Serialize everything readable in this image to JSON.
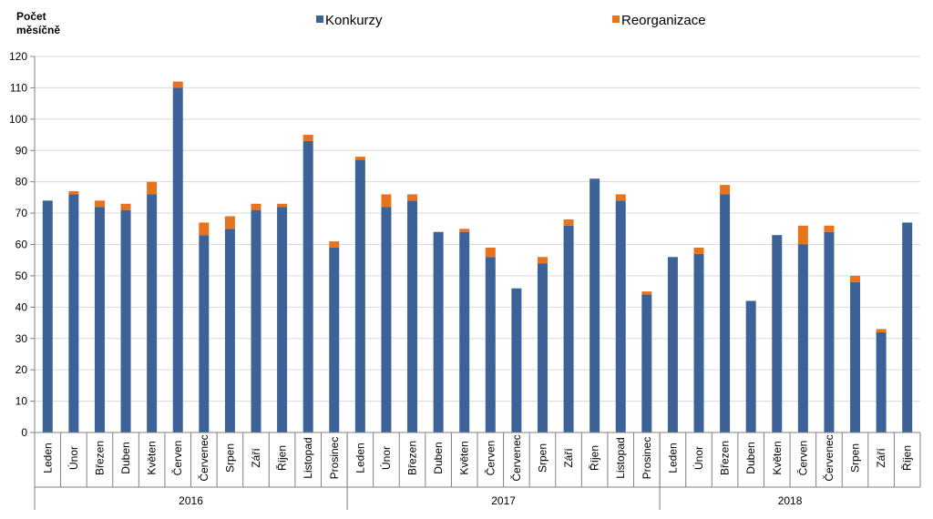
{
  "chart_data": {
    "type": "bar",
    "stacked": true,
    "ylabel_lines": [
      "Počet",
      "měsíčně"
    ],
    "ylim": [
      0,
      120
    ],
    "ytick_step": 10,
    "gridlines": true,
    "legend_position": "top-center",
    "colors": {
      "Konkurzy": "#3c6297",
      "Reorganizace": "#e8731e"
    },
    "groups": [
      {
        "year": "2016",
        "months": [
          "Leden",
          "Únor",
          "Březen",
          "Duben",
          "Květen",
          "Červen",
          "Červenec",
          "Srpen",
          "Září",
          "Říjen",
          "Listopad",
          "Prosinec"
        ]
      },
      {
        "year": "2017",
        "months": [
          "Leden",
          "Únor",
          "Březen",
          "Duben",
          "Květen",
          "Červen",
          "Červenec",
          "Srpen",
          "Září",
          "Říjen",
          "Listopad",
          "Prosinec"
        ]
      },
      {
        "year": "2018",
        "months": [
          "Leden",
          "Únor",
          "Březen",
          "Duben",
          "Květen",
          "Červen",
          "Červenec",
          "Srpen",
          "Září",
          "Říjen"
        ]
      }
    ],
    "series": [
      {
        "name": "Konkurzy",
        "values": [
          74,
          76,
          72,
          71,
          76,
          110,
          63,
          65,
          71,
          72,
          93,
          59,
          87,
          72,
          74,
          64,
          64,
          56,
          46,
          54,
          66,
          81,
          74,
          44,
          56,
          57,
          76,
          42,
          63,
          60,
          64,
          48,
          32,
          67
        ]
      },
      {
        "name": "Reorganizace",
        "values": [
          0,
          1,
          2,
          2,
          4,
          2,
          4,
          4,
          2,
          1,
          2,
          2,
          1,
          4,
          2,
          0,
          1,
          3,
          0,
          2,
          2,
          0,
          2,
          1,
          0,
          2,
          3,
          0,
          0,
          6,
          2,
          2,
          1,
          0
        ]
      }
    ]
  }
}
